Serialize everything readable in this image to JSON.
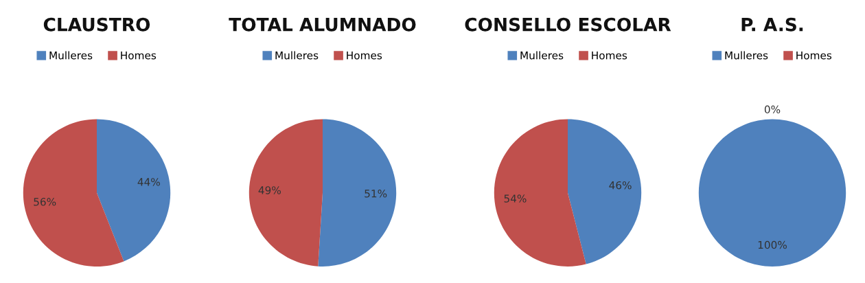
{
  "chart_data": [
    {
      "type": "pie",
      "title": "CLAUSTRO",
      "categories": [
        "Mulleres",
        "Homes"
      ],
      "values": [
        44,
        56
      ],
      "colors": [
        "#4f81bd",
        "#c0504d"
      ],
      "value_labels": [
        "44%",
        "56%"
      ],
      "legend": "top"
    },
    {
      "type": "pie",
      "title": "TOTAL ALUMNADO",
      "categories": [
        "Mulleres",
        "Homes"
      ],
      "values": [
        51,
        49
      ],
      "colors": [
        "#4f81bd",
        "#c0504d"
      ],
      "value_labels": [
        "51%",
        "49%"
      ],
      "legend": "top"
    },
    {
      "type": "pie",
      "title": "CONSELLO ESCOLAR",
      "categories": [
        "Mulleres",
        "Homes"
      ],
      "values": [
        46,
        54
      ],
      "colors": [
        "#4f81bd",
        "#c0504d"
      ],
      "value_labels": [
        "46%",
        "54%"
      ],
      "legend": "top"
    },
    {
      "type": "pie",
      "title": "P. A.S.",
      "categories": [
        "Mulleres",
        "Homes"
      ],
      "values": [
        100,
        0
      ],
      "colors": [
        "#4f81bd",
        "#c0504d"
      ],
      "value_labels": [
        "100%",
        "0%"
      ],
      "legend": "top"
    }
  ]
}
